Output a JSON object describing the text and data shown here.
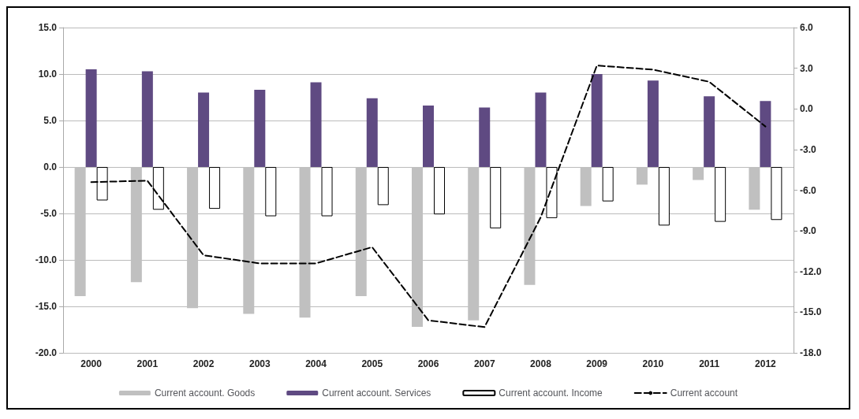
{
  "chart_data": {
    "type": "bar",
    "categories": [
      "2000",
      "2001",
      "2002",
      "2003",
      "2004",
      "2005",
      "2006",
      "2007",
      "2008",
      "2009",
      "2010",
      "2011",
      "2012"
    ],
    "series": [
      {
        "name": "Current account. Goods",
        "color": "#c0c0c0",
        "values": [
          -13.9,
          -12.4,
          -15.2,
          -15.8,
          -16.2,
          -13.9,
          -17.2,
          -16.5,
          -12.7,
          -4.2,
          -1.9,
          -1.4,
          -4.6
        ]
      },
      {
        "name": "Current account. Services",
        "color": "#5f4a82",
        "values": [
          10.5,
          10.3,
          8.0,
          8.3,
          9.1,
          7.4,
          6.6,
          6.4,
          8.0,
          10.0,
          9.3,
          7.6,
          7.1
        ]
      },
      {
        "name": "Current account. Income",
        "color": "#ffffff",
        "values": [
          -3.6,
          -4.6,
          -4.5,
          -5.3,
          -5.3,
          -4.1,
          -5.1,
          -6.6,
          -5.5,
          -3.7,
          -6.3,
          -5.9,
          -5.7
        ]
      },
      {
        "name": "Current account",
        "type": "line",
        "axis": "y2",
        "color": "#000000",
        "line_style": "dashed",
        "marker": "none",
        "values": [
          -5.4,
          -5.3,
          -10.8,
          -11.4,
          -11.4,
          -10.2,
          -15.6,
          -16.1,
          -8.0,
          3.2,
          2.9,
          2.0,
          -1.3
        ]
      }
    ],
    "ylim": [
      -20,
      15
    ],
    "yticks": [
      {
        "value": -20,
        "label": "-20.0"
      },
      {
        "value": -15,
        "label": "-15.0"
      },
      {
        "value": -10,
        "label": "-10.0"
      },
      {
        "value": -5,
        "label": "-5.0"
      },
      {
        "value": 0,
        "label": "0.0"
      },
      {
        "value": 5,
        "label": "5.0"
      },
      {
        "value": 10,
        "label": "10.0"
      },
      {
        "value": 15,
        "label": "15.0"
      }
    ],
    "y2lim": [
      -18,
      6
    ],
    "y2ticks": [
      {
        "value": -18,
        "label": "-18.0"
      },
      {
        "value": -15,
        "label": "-15.0"
      },
      {
        "value": -12,
        "label": "-12.0"
      },
      {
        "value": -9,
        "label": "-9.0"
      },
      {
        "value": -6,
        "label": "-6.0"
      },
      {
        "value": -3,
        "label": "-3.0"
      },
      {
        "value": 0,
        "label": "0.0"
      },
      {
        "value": 3,
        "label": "3.0"
      },
      {
        "value": 6,
        "label": "6.0"
      }
    ],
    "grid": "y",
    "legend": "bottom"
  }
}
